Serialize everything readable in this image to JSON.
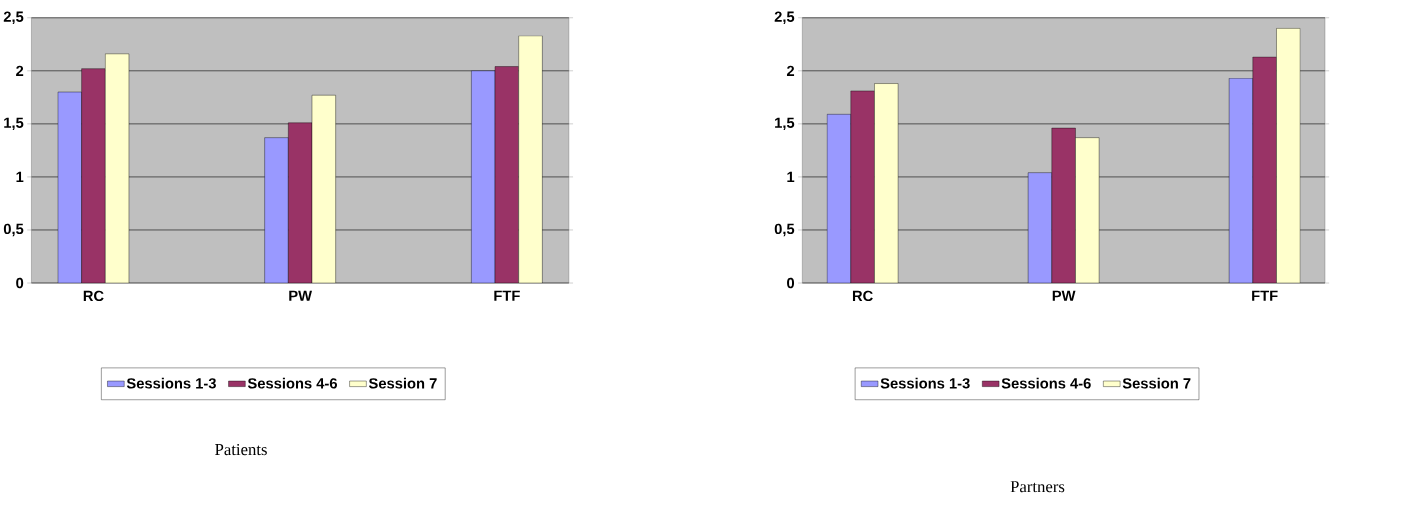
{
  "chart_data": [
    {
      "type": "bar",
      "title": "Patients",
      "categories": [
        "RC",
        "PW",
        "FTF"
      ],
      "series": [
        {
          "name": "Sessions 1-3",
          "color": "#9999ff",
          "values": [
            1.8,
            1.37,
            2.0
          ]
        },
        {
          "name": "Sessions 4-6",
          "color": "#993366",
          "values": [
            2.02,
            1.51,
            2.04
          ]
        },
        {
          "name": "Session 7",
          "color": "#ffffcc",
          "values": [
            2.16,
            1.77,
            2.33
          ]
        }
      ],
      "ylim": [
        0,
        2.5
      ],
      "yticks": [
        0,
        {
          "value": 0.5,
          "label": "0,5"
        },
        1,
        {
          "value": 1.5,
          "label": "1,5"
        },
        2,
        {
          "value": 2.5,
          "label": "2,5"
        }
      ],
      "grid": "y",
      "legend": "bottom"
    },
    {
      "type": "bar",
      "title": "Partners",
      "categories": [
        "RC",
        "PW",
        "FTF"
      ],
      "series": [
        {
          "name": "Sessions 1-3",
          "color": "#9999ff",
          "values": [
            1.59,
            1.04,
            1.93
          ]
        },
        {
          "name": "Sessions 4-6",
          "color": "#993366",
          "values": [
            1.81,
            1.46,
            2.13
          ]
        },
        {
          "name": "Session 7",
          "color": "#ffffcc",
          "values": [
            1.88,
            1.37,
            2.4
          ]
        }
      ],
      "ylim": [
        0,
        2.5
      ],
      "yticks": [
        0,
        {
          "value": 0.5,
          "label": "0,5"
        },
        1,
        {
          "value": 1.5,
          "label": "1,5"
        },
        2,
        {
          "value": 2.5,
          "label": "2,5"
        }
      ],
      "grid": "y",
      "legend": "bottom"
    }
  ]
}
